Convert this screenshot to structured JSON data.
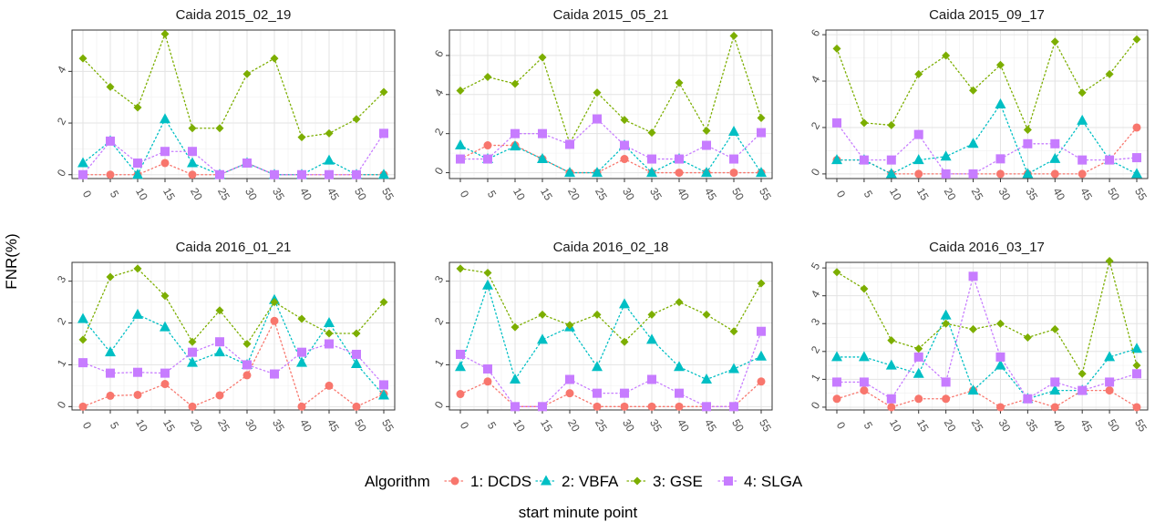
{
  "chart_data": {
    "type": "line",
    "layout": "facet-grid-2x3",
    "ylabel": "FNR(%)",
    "xlabel": "start minute point",
    "x": [
      0,
      5,
      10,
      15,
      20,
      25,
      30,
      35,
      40,
      45,
      50,
      55
    ],
    "xtick_labels": [
      "0",
      "5",
      "10",
      "15",
      "20",
      "25",
      "30",
      "35",
      "40",
      "45",
      "50",
      "55"
    ],
    "legend": {
      "title": "Algorithm",
      "placement": "bottom",
      "entries": [
        {
          "name": "1: DCDS",
          "color": "#F8766D",
          "shape": "circle"
        },
        {
          "name": "2: VBFA",
          "color": "#00BFC4",
          "shape": "triangle"
        },
        {
          "name": "3: GSE",
          "color": "#7CAE00",
          "shape": "diamond"
        },
        {
          "name": "4: SLGA",
          "color": "#C77CFF",
          "shape": "square"
        }
      ]
    },
    "panels": [
      {
        "title": "Caida 2015_02_19",
        "ylim": [
          -0.15,
          5.6
        ],
        "yticks": [
          0,
          2,
          4
        ],
        "series": [
          {
            "name": "1: DCDS",
            "values": [
              0,
              0,
              0,
              0.45,
              0,
              0,
              0.45,
              0,
              0,
              0,
              0,
              0
            ]
          },
          {
            "name": "2: VBFA",
            "values": [
              0.45,
              1.3,
              0,
              2.15,
              0.45,
              0,
              0.45,
              0,
              0,
              0.55,
              0,
              0
            ]
          },
          {
            "name": "3: GSE",
            "values": [
              4.5,
              3.4,
              2.6,
              5.45,
              1.8,
              1.8,
              3.9,
              4.5,
              1.45,
              1.6,
              2.15,
              3.2
            ]
          },
          {
            "name": "4: SLGA",
            "values": [
              0,
              1.3,
              0.45,
              0.9,
              0.9,
              0,
              0.45,
              0,
              0,
              0,
              0,
              1.6
            ]
          }
        ]
      },
      {
        "title": "Caida 2015_05_21",
        "ylim": [
          -0.3,
          7.3
        ],
        "yticks": [
          0,
          2,
          4,
          6
        ],
        "series": [
          {
            "name": "1: DCDS",
            "values": [
              0.7,
              1.4,
              1.4,
              0.7,
              0,
              0,
              0.7,
              0,
              0,
              0,
              0,
              0
            ]
          },
          {
            "name": "2: VBFA",
            "values": [
              1.4,
              0.7,
              1.35,
              0.7,
              0,
              0,
              1.4,
              0,
              0.7,
              0,
              2.1,
              0
            ]
          },
          {
            "name": "3: GSE",
            "values": [
              4.2,
              4.9,
              4.55,
              5.9,
              1.5,
              4.1,
              2.7,
              2.05,
              4.6,
              2.15,
              7.0,
              2.8
            ]
          },
          {
            "name": "4: SLGA",
            "values": [
              0.7,
              0.7,
              2.0,
              2.0,
              1.45,
              2.75,
              1.4,
              0.7,
              0.7,
              1.4,
              0.7,
              2.05
            ]
          }
        ]
      },
      {
        "title": "Caida 2015_09_17",
        "ylim": [
          -0.2,
          6.2
        ],
        "yticks": [
          0,
          2,
          4,
          6
        ],
        "series": [
          {
            "name": "1: DCDS",
            "values": [
              0.6,
              0.6,
              0,
              0,
              0,
              0,
              0,
              0,
              0,
              0,
              0.6,
              2.0
            ]
          },
          {
            "name": "2: VBFA",
            "values": [
              0.6,
              0.6,
              0,
              0.6,
              0.75,
              1.3,
              3.0,
              0,
              0.65,
              2.3,
              0.6,
              0
            ]
          },
          {
            "name": "3: GSE",
            "values": [
              5.4,
              2.2,
              2.1,
              4.3,
              5.1,
              3.6,
              4.7,
              1.9,
              5.7,
              3.5,
              4.3,
              5.8
            ]
          },
          {
            "name": "4: SLGA",
            "values": [
              2.2,
              0.6,
              0.6,
              1.7,
              0,
              0,
              0.65,
              1.3,
              1.3,
              0.6,
              0.6,
              0.7
            ]
          }
        ]
      },
      {
        "title": "Caida 2016_01_21",
        "ylim": [
          -0.08,
          3.45
        ],
        "yticks": [
          0,
          1,
          2,
          3
        ],
        "series": [
          {
            "name": "1: DCDS",
            "values": [
              0,
              0.26,
              0.28,
              0.54,
              0,
              0.27,
              0.75,
              2.05,
              0,
              0.5,
              0,
              0.3
            ]
          },
          {
            "name": "2: VBFA",
            "values": [
              2.1,
              1.3,
              2.2,
              1.9,
              1.05,
              1.3,
              1.0,
              2.55,
              1.05,
              2.0,
              1.02,
              0.27
            ]
          },
          {
            "name": "3: GSE",
            "values": [
              1.6,
              3.1,
              3.3,
              2.65,
              1.55,
              2.3,
              1.5,
              2.5,
              2.1,
              1.75,
              1.75,
              2.5
            ]
          },
          {
            "name": "4: SLGA",
            "values": [
              1.05,
              0.8,
              0.82,
              0.8,
              1.3,
              1.55,
              1.0,
              0.78,
              1.3,
              1.5,
              1.25,
              0.52
            ]
          }
        ]
      },
      {
        "title": "Caida 2016_02_18",
        "ylim": [
          -0.08,
          3.45
        ],
        "yticks": [
          0,
          1,
          2,
          3
        ],
        "series": [
          {
            "name": "1: DCDS",
            "values": [
              0.3,
              0.6,
              0,
              0,
              0.32,
              0,
              0,
              0,
              0,
              0,
              0,
              0.6
            ]
          },
          {
            "name": "2: VBFA",
            "values": [
              0.95,
              2.9,
              0.65,
              1.6,
              1.9,
              0.95,
              2.45,
              1.6,
              0.95,
              0.65,
              0.9,
              1.2
            ]
          },
          {
            "name": "3: GSE",
            "values": [
              3.3,
              3.2,
              1.9,
              2.2,
              1.95,
              2.2,
              1.55,
              2.2,
              2.5,
              2.2,
              1.8,
              2.95
            ]
          },
          {
            "name": "4: SLGA",
            "values": [
              1.25,
              0.9,
              0,
              0,
              0.65,
              0.32,
              0.32,
              0.65,
              0.32,
              0,
              0,
              1.8
            ]
          }
        ]
      },
      {
        "title": "Caida 2016_03_17",
        "ylim": [
          -0.1,
          5.2
        ],
        "yticks": [
          0,
          1,
          2,
          3,
          4,
          5
        ],
        "series": [
          {
            "name": "1: DCDS",
            "values": [
              0.3,
              0.6,
              0,
              0.3,
              0.3,
              0.6,
              0,
              0.3,
              0,
              0.6,
              0.6,
              0
            ]
          },
          {
            "name": "2: VBFA",
            "values": [
              1.8,
              1.8,
              1.5,
              1.2,
              3.3,
              0.6,
              1.5,
              0.3,
              0.6,
              0.6,
              1.8,
              2.1
            ]
          },
          {
            "name": "3: GSE",
            "values": [
              4.85,
              4.25,
              2.4,
              2.1,
              3.0,
              2.8,
              3.0,
              2.5,
              2.8,
              1.2,
              5.25,
              1.5
            ]
          },
          {
            "name": "4: SLGA",
            "values": [
              0.9,
              0.9,
              0.3,
              1.8,
              0.9,
              4.7,
              1.8,
              0.3,
              0.9,
              0.6,
              0.9,
              1.2
            ]
          }
        ]
      }
    ]
  }
}
